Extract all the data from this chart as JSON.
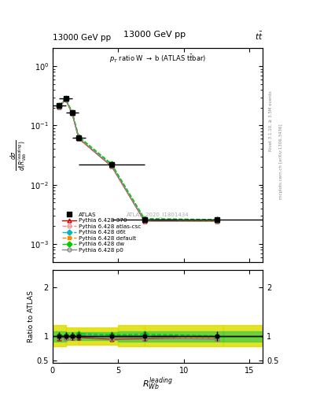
{
  "title_top": "13000 GeV pp",
  "title_top_right": "tt",
  "watermark": "ATLAS_2020_I1801434",
  "xlabel": "R_{Wb}^{leading}",
  "x_values": [
    0.5,
    1.0,
    1.5,
    2.0,
    4.5,
    7.0,
    12.5
  ],
  "xlim": [
    0,
    16
  ],
  "ylim_main": [
    0.0005,
    2.0
  ],
  "ylim_ratio": [
    0.45,
    2.35
  ],
  "atlas_y": [
    0.215,
    0.285,
    0.165,
    0.062,
    0.022,
    0.0026,
    0.0026
  ],
  "atlas_xerr": [
    0.5,
    0.5,
    0.5,
    0.5,
    2.5,
    2.5,
    5.0
  ],
  "atlas_yerr": [
    0.018,
    0.022,
    0.013,
    0.005,
    0.0018,
    0.00025,
    0.00025
  ],
  "p370_y": [
    0.205,
    0.275,
    0.158,
    0.06,
    0.0205,
    0.00245,
    0.00245
  ],
  "patlas_y": [
    0.21,
    0.28,
    0.162,
    0.062,
    0.0215,
    0.00255,
    0.0025
  ],
  "pd6t_y": [
    0.212,
    0.282,
    0.163,
    0.063,
    0.022,
    0.00262,
    0.00255
  ],
  "pdefault_y": [
    0.208,
    0.278,
    0.16,
    0.061,
    0.021,
    0.0025,
    0.00245
  ],
  "pdw_y": [
    0.218,
    0.288,
    0.167,
    0.065,
    0.0225,
    0.0027,
    0.0026
  ],
  "pp0_y": [
    0.207,
    0.272,
    0.159,
    0.061,
    0.0208,
    0.00248,
    0.00242
  ],
  "color_atlas": "#000000",
  "color_p370": "#cc0000",
  "color_patlas": "#ff8888",
  "color_pd6t": "#00bbbb",
  "color_pdefault": "#ff8800",
  "color_pdw": "#00cc00",
  "color_pp0": "#888888",
  "color_band_green": "#44cc44",
  "color_band_yellow": "#dddd00",
  "band_bin_edges": [
    0,
    1,
    2,
    5,
    7,
    13,
    16
  ],
  "band_yellow_lo": [
    0.78,
    0.82,
    0.82,
    0.78,
    0.78,
    0.78
  ],
  "band_yellow_hi": [
    1.22,
    1.18,
    1.18,
    1.22,
    1.22,
    1.22
  ],
  "band_green_lo": [
    0.88,
    0.92,
    0.92,
    0.88,
    0.88,
    0.88
  ],
  "band_green_hi": [
    1.1,
    1.08,
    1.08,
    1.1,
    1.1,
    1.1
  ],
  "legend_entries": [
    "ATLAS",
    "Pythia 6.428 370",
    "Pythia 6.428 atlas-csc",
    "Pythia 6.428 d6t",
    "Pythia 6.428 default",
    "Pythia 6.428 dw",
    "Pythia 6.428 p0"
  ]
}
